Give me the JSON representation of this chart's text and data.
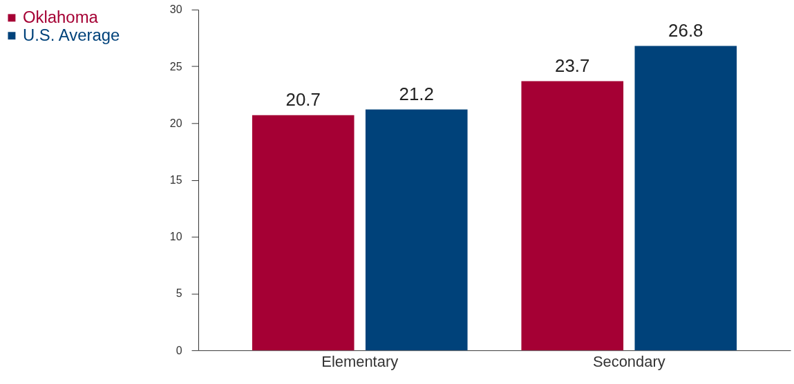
{
  "chart_data": {
    "type": "bar",
    "categories": [
      "Elementary",
      "Secondary"
    ],
    "series": [
      {
        "name": "Oklahoma",
        "color": "#a50034",
        "values": [
          20.7,
          23.7
        ]
      },
      {
        "name": "U.S. Average",
        "color": "#00427a",
        "values": [
          21.2,
          26.8
        ]
      }
    ],
    "ylim": [
      0,
      30
    ],
    "yticks": [
      0,
      5,
      10,
      15,
      20,
      25,
      30
    ],
    "data_labels": true,
    "grid": false,
    "legend": "top left"
  }
}
